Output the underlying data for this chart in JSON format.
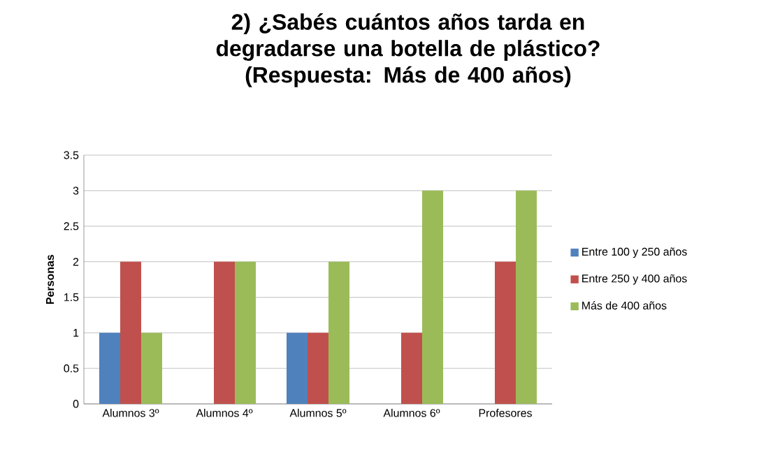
{
  "chart_data": {
    "type": "bar",
    "title": "2) ¿Sabés cuántos años tarda en degradarse una botella de plástico? (Respuesta: Más de 400 años)",
    "ylabel": "Personas",
    "categories": [
      "Alumnos 3º",
      "Alumnos 4º",
      "Alumnos 5º",
      "Alumnos 6º",
      "Profesores"
    ],
    "series": [
      {
        "name": "Entre 100 y 250 años",
        "color": "#4f81bd",
        "values": [
          1,
          0,
          1,
          0,
          0
        ]
      },
      {
        "name": "Entre 250 y 400 años",
        "color": "#c0504d",
        "values": [
          2,
          2,
          1,
          1,
          2
        ]
      },
      {
        "name": "Más de 400 años",
        "color": "#9bbb59",
        "values": [
          1,
          2,
          2,
          3,
          3
        ]
      }
    ],
    "ylim": [
      0,
      3.5
    ],
    "yticks": [
      0,
      0.5,
      1,
      1.5,
      2,
      2.5,
      3,
      3.5
    ],
    "grid": "y",
    "legend": "right"
  }
}
